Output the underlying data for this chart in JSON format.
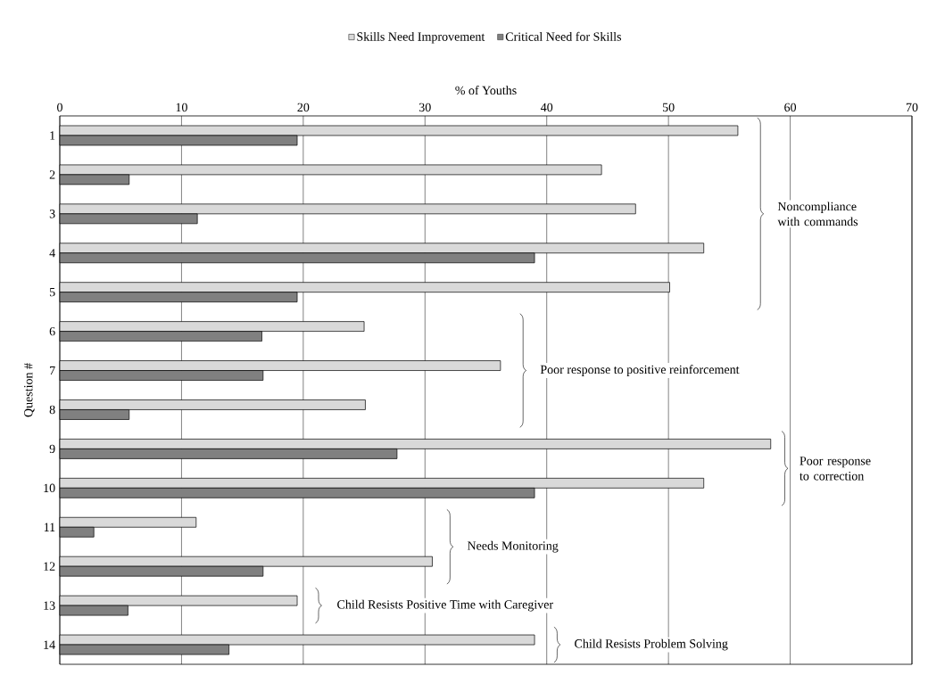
{
  "chart_data": {
    "type": "bar",
    "orientation": "horizontal",
    "xlabel": "% of Youths",
    "ylabel": "Question #",
    "categories": [
      "1",
      "2",
      "3",
      "4",
      "5",
      "6",
      "7",
      "8",
      "9",
      "10",
      "11",
      "12",
      "13",
      "14"
    ],
    "series": [
      {
        "name": "Skills Need Improvement",
        "color": "#d9d9d9",
        "values": [
          55.7,
          44.5,
          47.3,
          52.9,
          50.1,
          25.0,
          36.2,
          25.1,
          58.4,
          52.9,
          11.2,
          30.6,
          19.5,
          39.0
        ]
      },
      {
        "name": "Critical Need for Skills",
        "color": "#808080",
        "values": [
          19.5,
          5.7,
          11.3,
          39.0,
          19.5,
          16.6,
          16.7,
          5.7,
          27.7,
          39.0,
          2.8,
          16.7,
          5.6,
          13.9
        ]
      }
    ],
    "xlim": [
      0,
      70
    ],
    "xticks": [
      0,
      10,
      20,
      30,
      40,
      50,
      60,
      70
    ],
    "grid": "x",
    "legend": "top",
    "annotations": [
      "Noncompliance with commands",
      "Poor response to positive reinforcement",
      "Poor response to correction",
      "Needs Monitoring",
      "Child Resists Positive Time with Caregiver",
      "Child Resists Problem Solving"
    ]
  }
}
